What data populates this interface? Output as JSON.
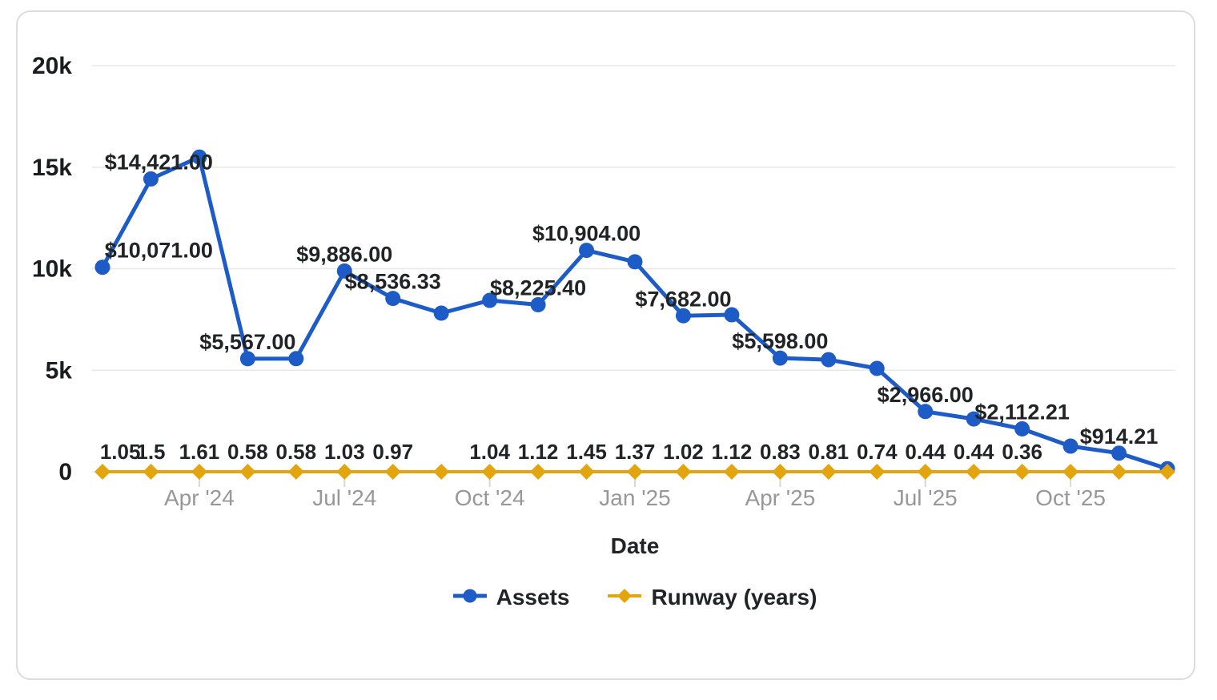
{
  "chart_data": {
    "type": "line",
    "title": "",
    "xlabel": "Date",
    "ylabel": "",
    "ylim": [
      0,
      20000
    ],
    "grid": true,
    "legend_position": "bottom",
    "y_ticks": [
      {
        "value": 0,
        "label": "0"
      },
      {
        "value": 5000,
        "label": "5k"
      },
      {
        "value": 10000,
        "label": "10k"
      },
      {
        "value": 15000,
        "label": "15k"
      },
      {
        "value": 20000,
        "label": "20k"
      }
    ],
    "x": [
      "Feb '24",
      "Mar '24",
      "Apr '24",
      "May '24",
      "Jun '24",
      "Jul '24",
      "Aug '24",
      "Sep '24",
      "Oct '24",
      "Nov '24",
      "Dec '24",
      "Jan '25",
      "Feb '25",
      "Mar '25",
      "Apr '25",
      "May '25",
      "Jun '25",
      "Jul '25",
      "Aug '25",
      "Sep '25",
      "Oct '25",
      "Nov '25",
      "Dec '25"
    ],
    "x_ticks": [
      {
        "index": 2,
        "label": "Apr '24"
      },
      {
        "index": 5,
        "label": "Jul '24"
      },
      {
        "index": 8,
        "label": "Oct '24"
      },
      {
        "index": 11,
        "label": "Jan '25"
      },
      {
        "index": 14,
        "label": "Apr '25"
      },
      {
        "index": 17,
        "label": "Jul '25"
      },
      {
        "index": 20,
        "label": "Oct '25"
      }
    ],
    "series": [
      {
        "name": "Assets",
        "color": "#1d5cc6",
        "marker": "circle",
        "values": [
          10071,
          14421,
          15500,
          5567,
          5570,
          9886,
          8536.33,
          7810,
          8440,
          8225.4,
          10904,
          10340,
          7682,
          7730,
          5598,
          5520,
          5090,
          2966,
          2600,
          2112.21,
          1260,
          914.21,
          150
        ],
        "labels": [
          "$10,071.00",
          "$14,421.00",
          null,
          "$5,567.00",
          null,
          "$9,886.00",
          "$8,536.33",
          null,
          null,
          "$8,225.40",
          "$10,904.00",
          null,
          "$7,682.00",
          null,
          "$5,598.00",
          null,
          null,
          "$2,966.00",
          null,
          "$2,112.21",
          null,
          "$914.21",
          null
        ]
      },
      {
        "name": "Runway (years)",
        "color": "#e2a50e",
        "marker": "diamond",
        "values": [
          1.05,
          1.5,
          1.61,
          0.58,
          0.58,
          1.03,
          0.97,
          1.0,
          1.04,
          1.12,
          1.45,
          1.37,
          1.02,
          1.12,
          0.83,
          0.81,
          0.74,
          0.44,
          0.44,
          0.36,
          0.3,
          0.25,
          0.1
        ],
        "labels": [
          "1.05",
          "1.5",
          "1.61",
          "0.58",
          "0.58",
          "1.03",
          "0.97",
          null,
          "1.04",
          "1.12",
          "1.45",
          "1.37",
          "1.02",
          "1.12",
          "0.83",
          "0.81",
          "0.74",
          "0.44",
          "0.44",
          "0.36",
          null,
          null,
          null
        ]
      }
    ],
    "colors": {
      "grid_line": "#e8e8e8",
      "tick_mark": "#d8d8d8",
      "y_tick_label": "#1b1c20",
      "x_tick_label": "#97979c",
      "data_label": "#222327",
      "card_border": "#dcdcdc",
      "background": "#ffffff"
    }
  },
  "legend": {
    "items": [
      {
        "label": "Assets"
      },
      {
        "label": "Runway (years)"
      }
    ]
  }
}
